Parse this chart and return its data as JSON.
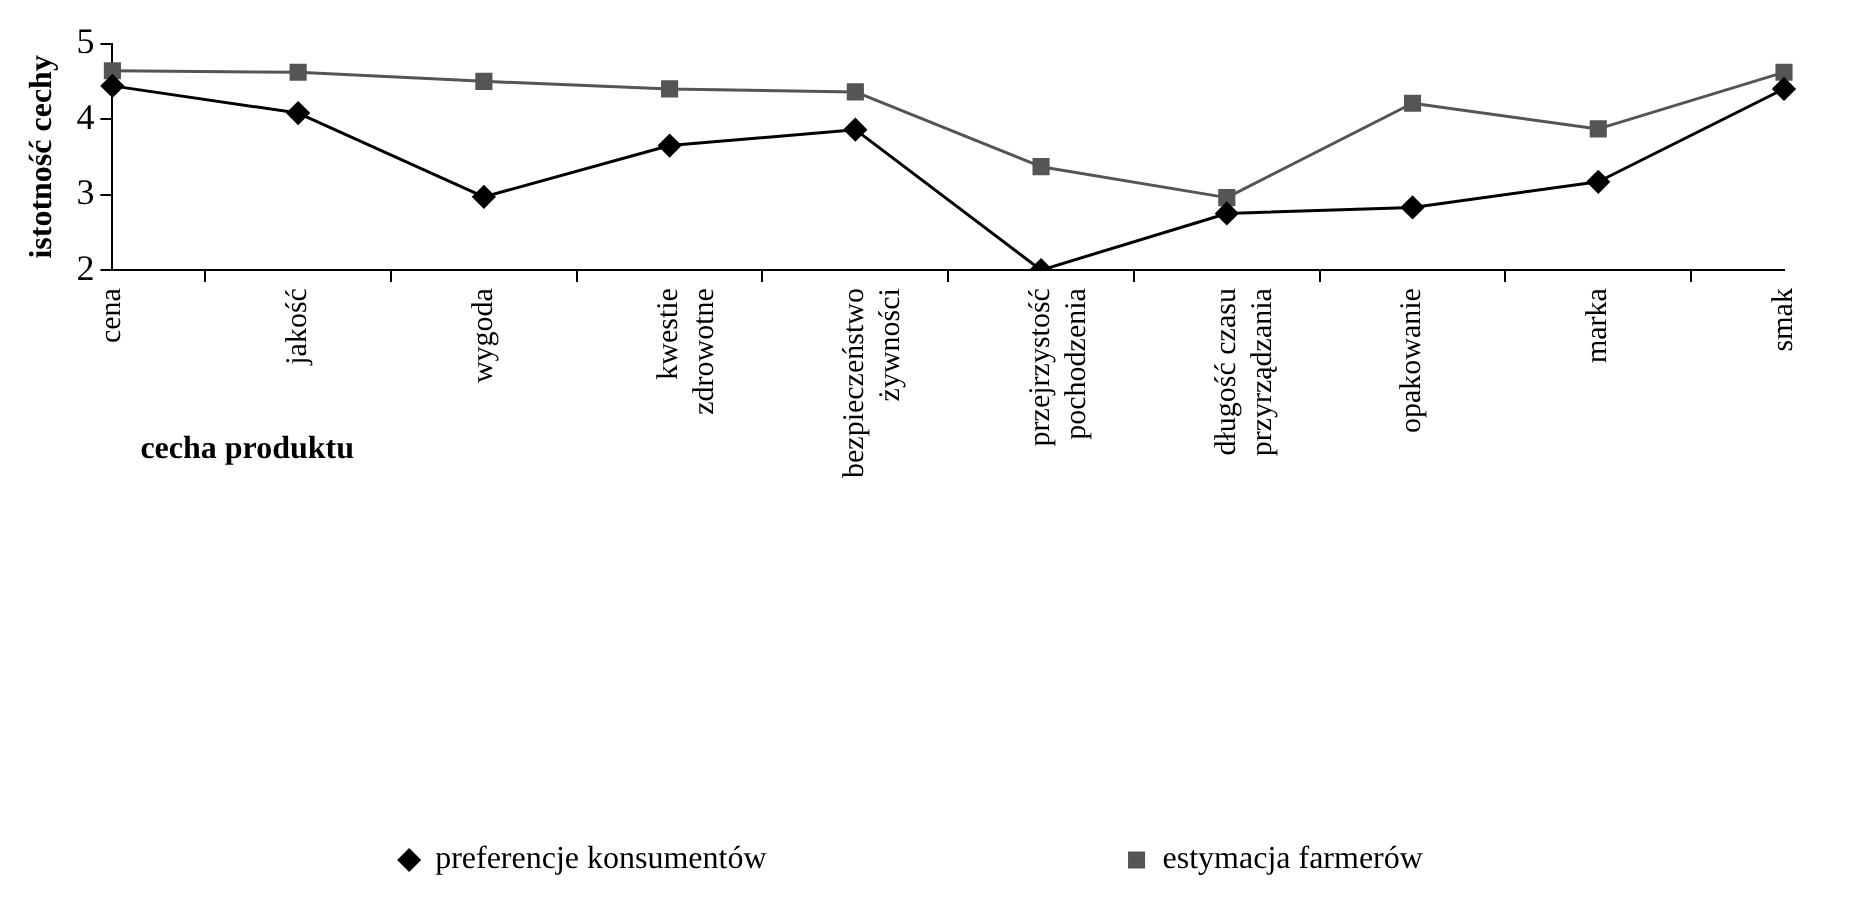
{
  "chart_data": {
    "type": "line",
    "xlabel": "cecha produktu",
    "ylabel": "istotność cechy",
    "categories": [
      "cena",
      "jakość",
      "wygoda",
      "kwestie\nzdrowotne",
      "bezpieczeństwo\nżywności",
      "przejrzystość\npochodzenia",
      "długość czasu\nprzyrządzania",
      "opakowanie",
      "marka",
      "smak"
    ],
    "series": [
      {
        "name": "preferencje konsumentów",
        "color": "#000000",
        "marker": "diamond",
        "values": [
          4.44,
          4.08,
          2.97,
          3.65,
          3.86,
          2.0,
          2.75,
          2.83,
          3.17,
          4.4
        ]
      },
      {
        "name": "estymacja farmerów",
        "color": "#555555",
        "marker": "square",
        "values": [
          4.64,
          4.62,
          4.5,
          4.4,
          4.36,
          3.37,
          2.96,
          4.21,
          3.87,
          4.62
        ]
      }
    ],
    "ylim": [
      2,
      5
    ],
    "yticks": [
      2,
      3,
      4,
      5
    ],
    "grid": false,
    "legend": "bottom"
  }
}
